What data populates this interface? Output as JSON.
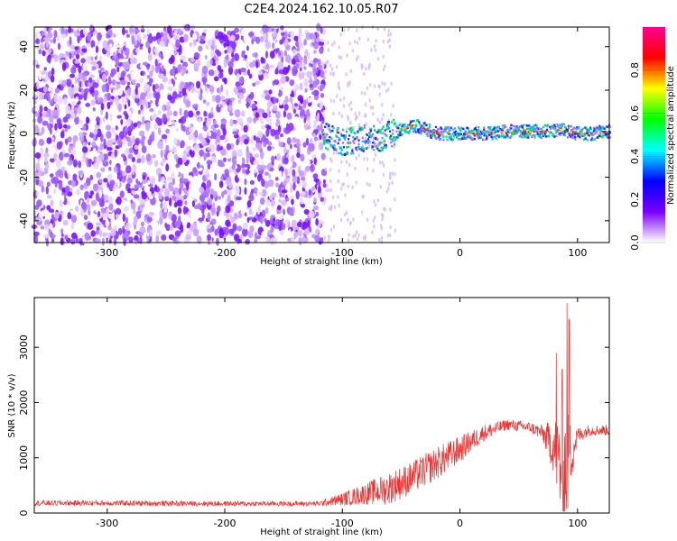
{
  "title": "C2E4.2024.162.10.05.R07",
  "chart_data": [
    {
      "type": "heatmap",
      "xlabel": "Height of straight line (km)",
      "ylabel": "Frequency (Hz)",
      "xlim": [
        -362,
        127
      ],
      "ylim": [
        -50,
        49
      ],
      "xticks": [
        -300,
        -200,
        -100,
        0,
        100
      ],
      "yticks": [
        -40,
        -20,
        0,
        20,
        40
      ],
      "colorbar": {
        "label": "Normalized spectral amplitude",
        "range": [
          0,
          1
        ],
        "ticks": [
          0.0,
          0.2,
          0.4,
          0.6,
          0.8
        ],
        "colormap": [
          "#ffffff",
          "#7a00ff",
          "#0000ff",
          "#00ffff",
          "#00ff00",
          "#ffff00",
          "#ff0000",
          "#ff0090"
        ]
      },
      "signal_trace": {
        "x": [
          -118,
          -110,
          -100,
          -90,
          -80,
          -70,
          -60,
          -50,
          -40,
          -30,
          -20,
          -10,
          0,
          10,
          20,
          40,
          60,
          75,
          85,
          90,
          100,
          110,
          127
        ],
        "freq": [
          0,
          -2,
          -4,
          -3,
          -2,
          -3,
          0,
          2,
          4,
          2,
          0,
          0,
          0,
          0,
          0,
          1,
          1,
          1,
          2,
          1,
          0,
          0,
          1
        ]
      }
    },
    {
      "type": "line",
      "xlabel": "Height of straight line (km)",
      "ylabel": "SNR (10 * v/v)",
      "xlim": [
        -362,
        127
      ],
      "ylim": [
        0,
        3900
      ],
      "xticks": [
        -300,
        -200,
        -100,
        0,
        100
      ],
      "yticks": [
        0,
        1000,
        2000,
        3000
      ],
      "color": "#ee3333",
      "series_envelope": {
        "x": [
          -362,
          -300,
          -200,
          -120,
          -100,
          -80,
          -60,
          -40,
          -20,
          0,
          20,
          40,
          60,
          70,
          80,
          85,
          90,
          95,
          100,
          110,
          127
        ],
        "mean": [
          180,
          180,
          170,
          170,
          250,
          350,
          450,
          650,
          900,
          1150,
          1450,
          1600,
          1550,
          1450,
          1200,
          900,
          800,
          1100,
          1400,
          1500,
          1500
        ],
        "noise": [
          50,
          50,
          45,
          45,
          120,
          200,
          300,
          300,
          300,
          250,
          150,
          100,
          100,
          150,
          500,
          1000,
          1200,
          500,
          150,
          100,
          100
        ]
      },
      "peaks": [
        {
          "x": 91,
          "y": 3800
        },
        {
          "x": 93,
          "y": 3500
        },
        {
          "x": 82,
          "y": 2900
        },
        {
          "x": 87,
          "y": 2600
        }
      ]
    }
  ]
}
